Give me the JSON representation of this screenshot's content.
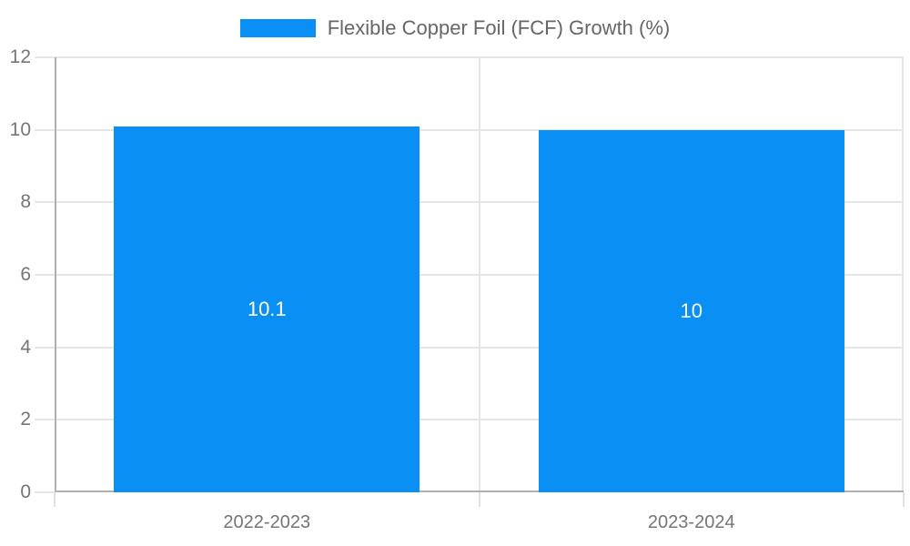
{
  "legend": {
    "label": "Flexible Copper Foil (FCF) Growth (%)"
  },
  "chart_data": {
    "type": "bar",
    "title": "Flexible Copper Foil (FCF) Growth (%)",
    "categories": [
      "2022-2023",
      "2023-2024"
    ],
    "series": [
      {
        "name": "Flexible Copper Foil (FCF) Growth (%)",
        "values": [
          10.1,
          10
        ]
      }
    ],
    "value_labels": [
      "10.1",
      "10"
    ],
    "xlabel": "",
    "ylabel": "",
    "ylim": [
      0,
      12
    ],
    "yticks": [
      0,
      2,
      4,
      6,
      8,
      10,
      12
    ],
    "grid": true,
    "legend_position": "top",
    "colors": {
      "bar": "#0A90F5",
      "grid": "#e6e6e6",
      "axis": "#b0b0b0",
      "tick_label": "#757575",
      "value_label": "#ffffff",
      "legend_text": "#666666"
    }
  }
}
